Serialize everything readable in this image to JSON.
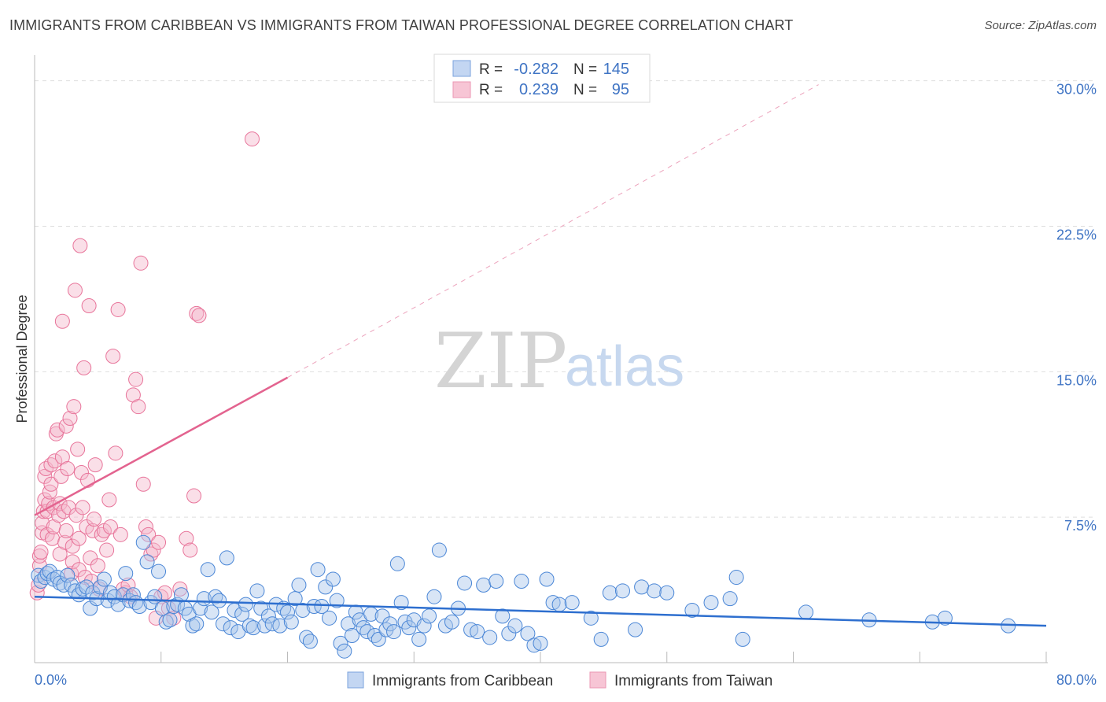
{
  "title": "IMMIGRANTS FROM CARIBBEAN VS IMMIGRANTS FROM TAIWAN PROFESSIONAL DEGREE CORRELATION CHART",
  "source": "Source: ZipAtlas.com",
  "watermark": {
    "zip": "ZIP",
    "atlas": "atlas"
  },
  "legend": {
    "r_label": "R =",
    "n_label": "N =",
    "items": [
      {
        "r": "-0.282",
        "n": "145"
      },
      {
        "r": "0.239",
        "n": "95"
      }
    ]
  },
  "chart_data": {
    "type": "scatter",
    "xlabel": "",
    "ylabel": "Professional Degree",
    "xlim": [
      0,
      80
    ],
    "ylim": [
      0,
      31
    ],
    "x_tick_labels": [
      "0.0%",
      "80.0%"
    ],
    "y_ticks": [
      7.5,
      15.0,
      22.5,
      30.0
    ],
    "y_tick_labels": [
      "7.5%",
      "15.0%",
      "22.5%",
      "30.0%"
    ],
    "colors": {
      "caribbean": "#4a86d6",
      "taiwan": "#e8749a",
      "tick": "#3f74c4"
    },
    "series": [
      {
        "name": "Immigrants from Caribbean",
        "color": "#4a86d6",
        "trend": {
          "x0": 0,
          "y0": 3.4,
          "x1": 80,
          "y1": 1.9
        },
        "points": [
          [
            0.3,
            4.5
          ],
          [
            0.5,
            4.2
          ],
          [
            0.8,
            4.4
          ],
          [
            1.0,
            4.6
          ],
          [
            1.2,
            4.7
          ],
          [
            1.5,
            4.3
          ],
          [
            1.8,
            4.4
          ],
          [
            2.0,
            4.1
          ],
          [
            2.3,
            4.0
          ],
          [
            2.6,
            4.5
          ],
          [
            2.9,
            4.0
          ],
          [
            3.2,
            3.7
          ],
          [
            3.5,
            3.5
          ],
          [
            3.8,
            3.8
          ],
          [
            4.1,
            3.9
          ],
          [
            4.4,
            2.8
          ],
          [
            4.6,
            3.6
          ],
          [
            4.9,
            3.3
          ],
          [
            5.2,
            3.9
          ],
          [
            5.5,
            4.3
          ],
          [
            5.8,
            3.2
          ],
          [
            6.0,
            3.6
          ],
          [
            6.3,
            3.4
          ],
          [
            6.6,
            3.0
          ],
          [
            7.0,
            3.5
          ],
          [
            7.2,
            4.6
          ],
          [
            7.5,
            3.2
          ],
          [
            7.8,
            3.5
          ],
          [
            8.0,
            3.1
          ],
          [
            8.3,
            2.9
          ],
          [
            8.6,
            6.2
          ],
          [
            8.9,
            5.2
          ],
          [
            9.2,
            3.1
          ],
          [
            9.5,
            3.4
          ],
          [
            9.8,
            4.7
          ],
          [
            10.1,
            2.8
          ],
          [
            10.4,
            2.1
          ],
          [
            10.7,
            2.2
          ],
          [
            11.0,
            2.9
          ],
          [
            11.3,
            3.0
          ],
          [
            11.6,
            3.5
          ],
          [
            11.9,
            2.8
          ],
          [
            12.2,
            2.5
          ],
          [
            12.5,
            1.9
          ],
          [
            12.8,
            2.0
          ],
          [
            13.1,
            2.8
          ],
          [
            13.4,
            3.3
          ],
          [
            13.7,
            4.8
          ],
          [
            14.0,
            2.6
          ],
          [
            14.3,
            3.4
          ],
          [
            14.6,
            3.2
          ],
          [
            14.9,
            2.0
          ],
          [
            15.2,
            5.4
          ],
          [
            15.5,
            1.8
          ],
          [
            15.8,
            2.7
          ],
          [
            16.1,
            1.6
          ],
          [
            16.4,
            2.5
          ],
          [
            16.7,
            3.0
          ],
          [
            17.0,
            1.9
          ],
          [
            17.3,
            1.8
          ],
          [
            17.6,
            3.7
          ],
          [
            17.9,
            2.8
          ],
          [
            18.2,
            1.9
          ],
          [
            18.5,
            2.4
          ],
          [
            18.8,
            2.0
          ],
          [
            19.1,
            3.0
          ],
          [
            19.4,
            1.9
          ],
          [
            19.7,
            2.8
          ],
          [
            20.0,
            2.6
          ],
          [
            20.3,
            2.1
          ],
          [
            20.6,
            3.3
          ],
          [
            20.9,
            4.0
          ],
          [
            21.2,
            2.7
          ],
          [
            21.5,
            1.3
          ],
          [
            21.8,
            1.1
          ],
          [
            22.1,
            2.9
          ],
          [
            22.4,
            4.8
          ],
          [
            22.7,
            2.9
          ],
          [
            23.0,
            3.9
          ],
          [
            23.3,
            2.3
          ],
          [
            23.6,
            4.3
          ],
          [
            23.9,
            3.2
          ],
          [
            24.2,
            1.0
          ],
          [
            24.5,
            0.6
          ],
          [
            24.8,
            2.0
          ],
          [
            25.1,
            1.4
          ],
          [
            25.4,
            2.6
          ],
          [
            25.7,
            2.2
          ],
          [
            26.0,
            1.8
          ],
          [
            26.3,
            1.6
          ],
          [
            26.6,
            2.5
          ],
          [
            26.9,
            1.4
          ],
          [
            27.2,
            1.2
          ],
          [
            27.5,
            2.4
          ],
          [
            27.8,
            1.7
          ],
          [
            28.1,
            2.0
          ],
          [
            28.4,
            1.6
          ],
          [
            28.7,
            5.1
          ],
          [
            29.0,
            3.1
          ],
          [
            29.3,
            2.1
          ],
          [
            29.6,
            1.8
          ],
          [
            30.0,
            2.2
          ],
          [
            30.4,
            1.2
          ],
          [
            30.8,
            1.9
          ],
          [
            31.2,
            2.4
          ],
          [
            31.6,
            3.4
          ],
          [
            32.0,
            5.8
          ],
          [
            32.5,
            1.9
          ],
          [
            33.0,
            2.1
          ],
          [
            33.5,
            2.8
          ],
          [
            34.0,
            4.1
          ],
          [
            34.5,
            1.7
          ],
          [
            35.0,
            1.6
          ],
          [
            35.5,
            4.0
          ],
          [
            36.0,
            1.3
          ],
          [
            36.5,
            4.2
          ],
          [
            37.0,
            2.4
          ],
          [
            37.5,
            1.5
          ],
          [
            38.0,
            1.9
          ],
          [
            38.5,
            4.2
          ],
          [
            39.0,
            1.5
          ],
          [
            39.5,
            0.9
          ],
          [
            40.0,
            1.0
          ],
          [
            40.5,
            4.3
          ],
          [
            41.0,
            3.1
          ],
          [
            41.5,
            3.0
          ],
          [
            42.5,
            3.1
          ],
          [
            44.0,
            2.3
          ],
          [
            44.8,
            1.2
          ],
          [
            45.5,
            3.6
          ],
          [
            46.5,
            3.7
          ],
          [
            47.5,
            1.7
          ],
          [
            48.0,
            3.9
          ],
          [
            49.0,
            3.7
          ],
          [
            50.0,
            3.6
          ],
          [
            52.0,
            2.7
          ],
          [
            53.5,
            3.1
          ],
          [
            55.0,
            3.3
          ],
          [
            55.5,
            4.4
          ],
          [
            56.0,
            1.2
          ],
          [
            61.0,
            2.6
          ],
          [
            66.0,
            2.2
          ],
          [
            71.0,
            2.1
          ],
          [
            72.0,
            2.3
          ],
          [
            77.0,
            1.9
          ]
        ]
      },
      {
        "name": "Immigrants from Taiwan",
        "color": "#e8749a",
        "trend": {
          "x0": 0,
          "y0": 7.6,
          "x1": 20,
          "y1": 14.7
        },
        "trend_extension": {
          "x0": 20,
          "y0": 14.7,
          "x1": 62,
          "y1": 29.8
        },
        "points": [
          [
            0.2,
            3.6
          ],
          [
            0.3,
            4.0
          ],
          [
            0.4,
            5.0
          ],
          [
            0.4,
            5.5
          ],
          [
            0.5,
            5.7
          ],
          [
            0.6,
            6.7
          ],
          [
            0.6,
            7.2
          ],
          [
            0.7,
            7.8
          ],
          [
            0.8,
            8.4
          ],
          [
            0.8,
            9.6
          ],
          [
            0.9,
            10.0
          ],
          [
            1.0,
            6.6
          ],
          [
            1.0,
            7.8
          ],
          [
            1.1,
            8.2
          ],
          [
            1.2,
            8.8
          ],
          [
            1.3,
            9.2
          ],
          [
            1.3,
            10.2
          ],
          [
            1.4,
            6.4
          ],
          [
            1.5,
            7.0
          ],
          [
            1.5,
            8.0
          ],
          [
            1.6,
            10.4
          ],
          [
            1.7,
            11.8
          ],
          [
            1.8,
            12.0
          ],
          [
            1.9,
            7.6
          ],
          [
            2.0,
            5.6
          ],
          [
            2.0,
            8.2
          ],
          [
            2.1,
            9.6
          ],
          [
            2.2,
            10.6
          ],
          [
            2.2,
            17.6
          ],
          [
            2.3,
            7.8
          ],
          [
            2.4,
            6.2
          ],
          [
            2.5,
            6.8
          ],
          [
            2.5,
            12.2
          ],
          [
            2.6,
            10.0
          ],
          [
            2.7,
            8.0
          ],
          [
            2.8,
            12.6
          ],
          [
            2.9,
            4.6
          ],
          [
            3.0,
            5.2
          ],
          [
            3.0,
            6.0
          ],
          [
            3.1,
            13.2
          ],
          [
            3.2,
            19.2
          ],
          [
            3.3,
            7.6
          ],
          [
            3.4,
            11.0
          ],
          [
            3.5,
            4.8
          ],
          [
            3.5,
            6.4
          ],
          [
            3.6,
            21.5
          ],
          [
            3.7,
            9.8
          ],
          [
            3.8,
            8.0
          ],
          [
            3.9,
            15.2
          ],
          [
            4.0,
            4.4
          ],
          [
            4.1,
            7.0
          ],
          [
            4.2,
            9.4
          ],
          [
            4.3,
            18.4
          ],
          [
            4.4,
            5.4
          ],
          [
            4.5,
            4.2
          ],
          [
            4.6,
            6.8
          ],
          [
            4.7,
            7.4
          ],
          [
            4.8,
            10.2
          ],
          [
            5.0,
            5.0
          ],
          [
            5.1,
            3.8
          ],
          [
            5.3,
            6.6
          ],
          [
            5.5,
            6.8
          ],
          [
            5.7,
            5.8
          ],
          [
            5.9,
            8.4
          ],
          [
            6.0,
            7.0
          ],
          [
            6.2,
            15.8
          ],
          [
            6.4,
            10.8
          ],
          [
            6.6,
            18.2
          ],
          [
            6.8,
            6.6
          ],
          [
            7.0,
            3.8
          ],
          [
            7.2,
            3.6
          ],
          [
            7.4,
            4.0
          ],
          [
            7.6,
            3.4
          ],
          [
            7.8,
            13.8
          ],
          [
            8.0,
            14.6
          ],
          [
            8.2,
            13.2
          ],
          [
            8.4,
            20.6
          ],
          [
            8.6,
            9.2
          ],
          [
            8.8,
            7.0
          ],
          [
            9.0,
            6.6
          ],
          [
            9.2,
            5.6
          ],
          [
            9.4,
            5.8
          ],
          [
            9.6,
            2.3
          ],
          [
            9.8,
            6.2
          ],
          [
            10.0,
            3.4
          ],
          [
            10.3,
            3.6
          ],
          [
            10.6,
            2.8
          ],
          [
            11.0,
            2.3
          ],
          [
            11.5,
            3.8
          ],
          [
            12.0,
            6.4
          ],
          [
            12.3,
            5.8
          ],
          [
            12.6,
            8.6
          ],
          [
            12.8,
            18.0
          ],
          [
            13.0,
            17.9
          ],
          [
            17.2,
            27.0
          ]
        ]
      }
    ]
  },
  "bottom_legend": [
    "Immigrants from Caribbean",
    "Immigrants from Taiwan"
  ]
}
